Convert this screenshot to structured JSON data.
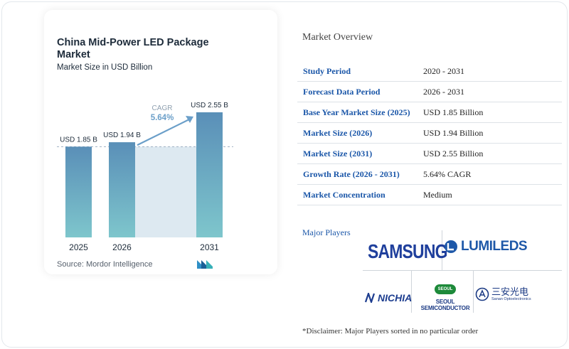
{
  "chart_data": {
    "type": "bar",
    "title": "China Mid-Power LED Package Market",
    "subtitle": "Market Size in USD Billion",
    "categories": [
      "2025",
      "2026",
      "2031"
    ],
    "values": [
      1.85,
      1.94,
      2.55
    ],
    "value_labels": [
      "USD 1.85 B",
      "USD 1.94 B",
      "USD 2.55 B"
    ],
    "cagr_label": "CAGR",
    "cagr_value": "5.64%",
    "ylim": [
      0,
      2.55
    ],
    "grid": false,
    "colors": {
      "bar_top": "#5a8fb8",
      "bar_bottom": "#7ec6cc",
      "band": "#dde9f1",
      "arrow": "#6b9fc9",
      "reference_line": "#9fb1c2"
    }
  },
  "source": "Source: Mordor Intelligence",
  "overview": {
    "title": "Market Overview",
    "rows": [
      {
        "label": "Study Period",
        "value": "2020 - 2031"
      },
      {
        "label": "Forecast Data Period",
        "value": "2026 - 2031"
      },
      {
        "label": "Base Year Market Size (2025)",
        "value": "USD 1.85 Billion"
      },
      {
        "label": "Market Size (2026)",
        "value": "USD 1.94 Billion"
      },
      {
        "label": "Market Size (2031)",
        "value": "USD 2.55 Billion"
      },
      {
        "label": "Growth Rate (2026 - 2031)",
        "value": "5.64% CAGR"
      },
      {
        "label": "Market Concentration",
        "value": "Medium"
      }
    ]
  },
  "players": {
    "title": "Major Players",
    "logos": {
      "samsung": "SAMSUNG",
      "lumileds": "LUMILEDS",
      "nichia": "NICHIA",
      "seoul_badge": "SEOUL",
      "seoul": "SEOUL SEMICONDUCTOR",
      "sanan_cn": "三安光电",
      "sanan_en": "Sanan Optoelectronics"
    }
  },
  "disclaimer": "*Disclaimer: Major Players sorted in no particular order"
}
